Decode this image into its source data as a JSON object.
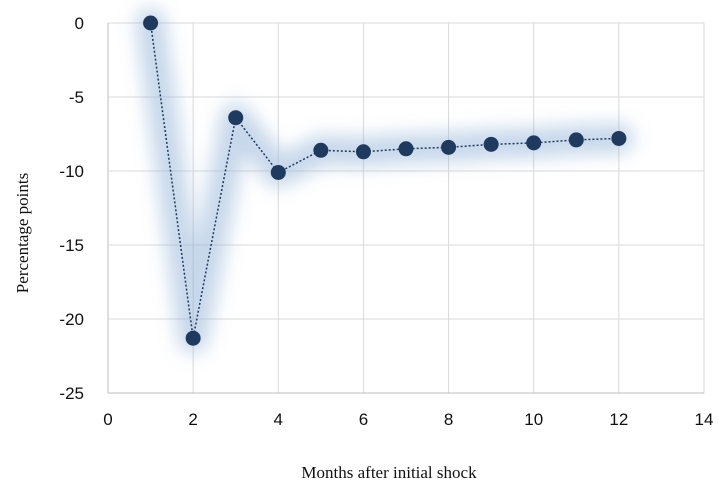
{
  "chart_data": {
    "type": "line",
    "xlabel": "Months after initial shock",
    "ylabel": "Percentage points",
    "xlim": [
      0,
      14
    ],
    "ylim": [
      -25,
      0
    ],
    "x_ticks": [
      0,
      2,
      4,
      6,
      8,
      10,
      12,
      14
    ],
    "y_ticks": [
      0,
      -5,
      -10,
      -15,
      -20,
      -25
    ],
    "grid": true,
    "legend": "none",
    "series": [
      {
        "x": [
          1,
          2,
          3,
          4,
          5,
          6,
          7,
          8,
          9,
          10,
          11,
          12
        ],
        "values": [
          0,
          -21.3,
          -6.4,
          -10.1,
          -8.6,
          -8.7,
          -8.5,
          -8.4,
          -8.2,
          -8.1,
          -7.9,
          -7.8
        ],
        "color": "#1f3a5f",
        "glow_color": "#8fb0d6",
        "line_style": "dotted"
      }
    ]
  }
}
